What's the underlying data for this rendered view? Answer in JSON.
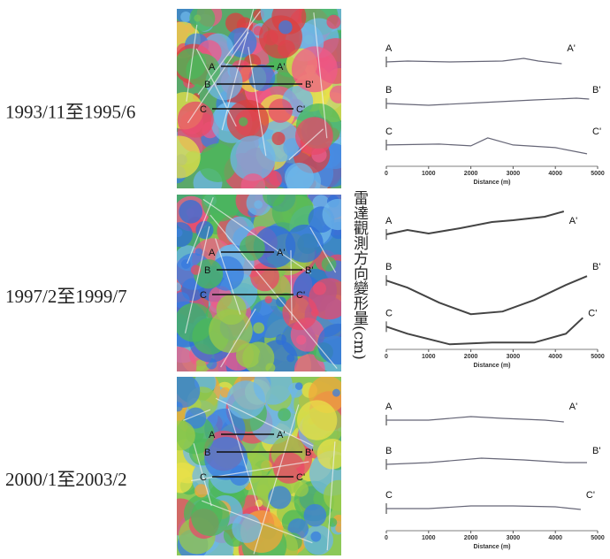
{
  "y_label": "雷達觀測方向變形量(cm)",
  "panels": [
    {
      "period": "1993/11至1995/6",
      "sections": [
        {
          "start": "A",
          "end": "A'"
        },
        {
          "start": "B",
          "end": "B'"
        },
        {
          "start": "C",
          "end": "C'"
        }
      ],
      "profile": {
        "xticks": [
          0,
          1000,
          2000,
          3000,
          4000,
          5000
        ],
        "x_label": "Distance (m)"
      }
    },
    {
      "period": "1997/2至1999/7",
      "sections": [
        {
          "start": "A",
          "end": "A'"
        },
        {
          "start": "B",
          "end": "B'"
        },
        {
          "start": "C",
          "end": "C'"
        }
      ],
      "profile": {
        "xticks": [
          0,
          1000,
          2000,
          3000,
          4000,
          5000
        ],
        "x_label": "Distance (m)"
      }
    },
    {
      "period": "2000/1至2003/2",
      "sections": [
        {
          "start": "A",
          "end": "A'"
        },
        {
          "start": "B",
          "end": "B'"
        },
        {
          "start": "C",
          "end": "C'"
        }
      ],
      "profile": {
        "xticks": [
          0,
          1000,
          2000,
          3000,
          4000,
          5000
        ],
        "x_label": "Distance (m)"
      }
    }
  ]
}
